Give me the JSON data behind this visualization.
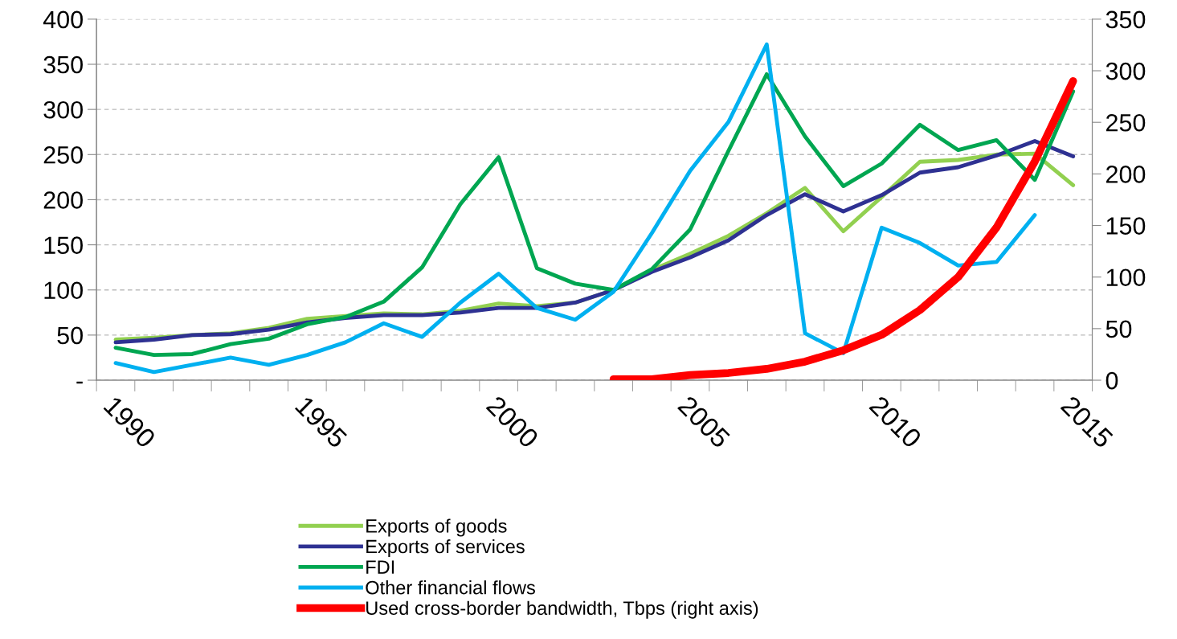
{
  "chart_data": {
    "type": "line",
    "categories": [
      "1990",
      null,
      null,
      null,
      null,
      "1995",
      null,
      null,
      null,
      null,
      "2000",
      null,
      null,
      null,
      null,
      "2005",
      null,
      null,
      null,
      null,
      "2010",
      null,
      null,
      null,
      null,
      "2015"
    ],
    "series": [
      {
        "name": "Exports of goods",
        "color": "#92d050",
        "values": [
          45,
          47,
          50,
          52,
          58,
          68,
          71,
          74,
          73,
          77,
          85,
          82,
          86,
          100,
          122,
          140,
          160,
          185,
          213,
          165,
          203,
          242,
          244,
          250,
          251,
          216
        ]
      },
      {
        "name": "Exports of services",
        "color": "#2e3192",
        "values": [
          42,
          45,
          50,
          51,
          56,
          64,
          69,
          72,
          72,
          75,
          80,
          80,
          86,
          100,
          120,
          136,
          155,
          183,
          206,
          187,
          205,
          230,
          236,
          249,
          265,
          248
        ]
      },
      {
        "name": "FDI",
        "color": "#00a651",
        "values": [
          36,
          28,
          29,
          40,
          46,
          62,
          70,
          87,
          125,
          195,
          247,
          124,
          107,
          100,
          123,
          167,
          254,
          339,
          270,
          215,
          240,
          283,
          255,
          266,
          222,
          320
        ]
      },
      {
        "name": "Other financial flows",
        "color": "#00b0f0",
        "values": [
          19,
          9,
          17,
          25,
          17,
          28,
          42,
          63,
          48,
          86,
          118,
          80,
          67,
          98,
          163,
          232,
          286,
          372,
          52,
          30,
          169,
          152,
          127,
          131,
          183,
          null
        ]
      },
      {
        "name": "Used cross-border bandwidth, Tbps (right axis)",
        "color": "#ff0000",
        "axis": "y2",
        "values": [
          null,
          null,
          null,
          null,
          null,
          null,
          null,
          null,
          null,
          null,
          null,
          null,
          null,
          1,
          1,
          5,
          7,
          11,
          18,
          29,
          44,
          68,
          100,
          148,
          212,
          290
        ]
      }
    ],
    "ylim": [
      0,
      400
    ],
    "yticks": [
      {
        "value": 0,
        "label": "-"
      },
      50,
      100,
      150,
      200,
      250,
      300,
      350,
      400
    ],
    "y2lim": [
      0,
      350
    ],
    "y2ticks": [
      0,
      50,
      100,
      150,
      200,
      250,
      300,
      350
    ],
    "grid": "y",
    "legend": "bottom",
    "line_style": "solid",
    "marker": "none"
  }
}
